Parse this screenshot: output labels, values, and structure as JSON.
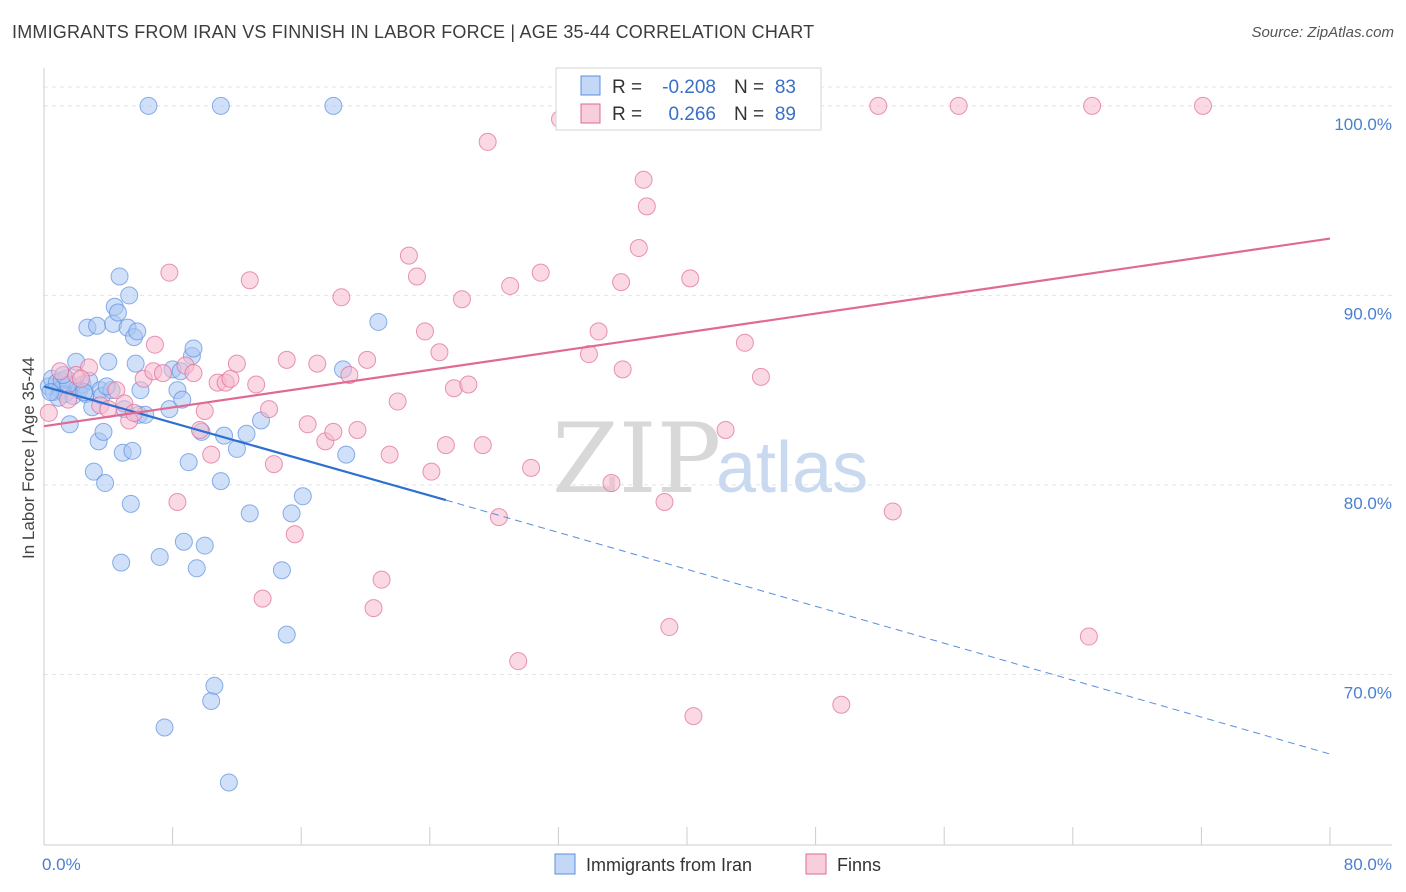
{
  "title": "IMMIGRANTS FROM IRAN VS FINNISH IN LABOR FORCE | AGE 35-44 CORRELATION CHART",
  "source": "Source: ZipAtlas.com",
  "watermark": {
    "zip": "ZIP",
    "atlas": "atlas"
  },
  "colors": {
    "blue": "#5b8fe0",
    "blue_fill": "#a9c6f3",
    "pink": "#e06a95",
    "pink_fill": "#f6b9cd",
    "tick": "#4a7fd0"
  },
  "legend": {
    "r_label": "R =",
    "n_label": "N =",
    "rows": [
      {
        "r": "-0.208",
        "n": "83"
      },
      {
        "r": "0.266",
        "n": "89"
      }
    ]
  },
  "chart_data": {
    "type": "scatter",
    "title": "IMMIGRANTS FROM IRAN VS FINNISH IN LABOR FORCE | AGE 35-44 CORRELATION CHART",
    "xlabel": "",
    "ylabel": "In Labor Force | Age 35-44",
    "xlim": [
      0,
      80
    ],
    "ylim": [
      61,
      102
    ],
    "x_tick_labels": [
      "0.0%",
      "80.0%"
    ],
    "y_ticks": [
      70,
      80,
      90,
      100
    ],
    "y_tick_labels": [
      "70.0%",
      "80.0%",
      "90.0%",
      "100.0%"
    ],
    "grid": true,
    "legend_position": "top-center",
    "series": [
      {
        "name": "Immigrants from Iran",
        "color": "#5b8fe0",
        "trend": {
          "x0": 0,
          "y0": 85.2,
          "x1": 25,
          "y1": 79.2,
          "dashed_to_x": 80,
          "dashed_to_y": 65.8
        },
        "points": [
          [
            0.3,
            85.2
          ],
          [
            0.5,
            85.6
          ],
          [
            0.6,
            84.9
          ],
          [
            0.8,
            85.4
          ],
          [
            1.0,
            85.0
          ],
          [
            1.1,
            85.5
          ],
          [
            1.3,
            84.8
          ],
          [
            1.4,
            85.6
          ],
          [
            1.6,
            83.2
          ],
          [
            1.8,
            84.7
          ],
          [
            2.0,
            86.5
          ],
          [
            2.1,
            85.1
          ],
          [
            2.2,
            85.0
          ],
          [
            2.4,
            85.3
          ],
          [
            2.6,
            84.8
          ],
          [
            2.7,
            88.3
          ],
          [
            2.8,
            85.5
          ],
          [
            3.0,
            84.1
          ],
          [
            3.1,
            80.7
          ],
          [
            3.3,
            88.4
          ],
          [
            3.4,
            82.3
          ],
          [
            3.5,
            85.0
          ],
          [
            3.6,
            84.7
          ],
          [
            3.7,
            82.8
          ],
          [
            3.8,
            80.1
          ],
          [
            4.0,
            86.5
          ],
          [
            4.2,
            85.0
          ],
          [
            4.3,
            88.5
          ],
          [
            4.4,
            89.4
          ],
          [
            4.6,
            89.1
          ],
          [
            4.7,
            91.0
          ],
          [
            4.8,
            75.9
          ],
          [
            4.9,
            81.7
          ],
          [
            5.0,
            84.0
          ],
          [
            5.2,
            88.3
          ],
          [
            5.3,
            90.0
          ],
          [
            5.4,
            79.0
          ],
          [
            5.5,
            81.8
          ],
          [
            5.6,
            87.8
          ],
          [
            5.7,
            86.4
          ],
          [
            5.8,
            88.1
          ],
          [
            5.9,
            83.7
          ],
          [
            6.0,
            85.0
          ],
          [
            6.5,
            100.0
          ],
          [
            6.3,
            83.7
          ],
          [
            7.2,
            76.2
          ],
          [
            7.5,
            67.2
          ],
          [
            7.8,
            84.0
          ],
          [
            8.0,
            86.1
          ],
          [
            8.3,
            85.0
          ],
          [
            8.5,
            86.0
          ],
          [
            8.6,
            84.5
          ],
          [
            8.7,
            77.0
          ],
          [
            9.0,
            81.2
          ],
          [
            9.2,
            86.8
          ],
          [
            9.3,
            87.2
          ],
          [
            9.5,
            75.6
          ],
          [
            9.8,
            82.8
          ],
          [
            10.0,
            76.8
          ],
          [
            10.4,
            68.6
          ],
          [
            10.6,
            69.4
          ],
          [
            11.0,
            80.2
          ],
          [
            11.2,
            82.6
          ],
          [
            11.5,
            64.3
          ],
          [
            11.0,
            100.0
          ],
          [
            12.0,
            81.9
          ],
          [
            12.6,
            82.7
          ],
          [
            12.8,
            78.5
          ],
          [
            13.5,
            83.4
          ],
          [
            14.8,
            75.5
          ],
          [
            15.1,
            72.1
          ],
          [
            15.4,
            78.5
          ],
          [
            16.1,
            79.4
          ],
          [
            18.0,
            100.0
          ],
          [
            18.6,
            86.1
          ],
          [
            18.8,
            81.6
          ],
          [
            20.8,
            88.6
          ],
          [
            1.5,
            85.3
          ],
          [
            2.5,
            84.9
          ],
          [
            0.9,
            84.6
          ],
          [
            1.2,
            85.8
          ],
          [
            0.4,
            84.9
          ],
          [
            3.9,
            85.2
          ]
        ]
      },
      {
        "name": "Finns",
        "color": "#e06a95",
        "trend": {
          "x0": 0,
          "y0": 83.1,
          "x1": 80,
          "y1": 93.0
        },
        "points": [
          [
            0.3,
            83.8
          ],
          [
            1.5,
            84.5
          ],
          [
            2.0,
            85.8
          ],
          [
            2.8,
            86.2
          ],
          [
            3.5,
            84.2
          ],
          [
            4.0,
            84.0
          ],
          [
            4.5,
            85.0
          ],
          [
            5.0,
            84.3
          ],
          [
            5.3,
            83.4
          ],
          [
            5.6,
            83.8
          ],
          [
            6.2,
            85.6
          ],
          [
            6.8,
            86.0
          ],
          [
            6.9,
            87.4
          ],
          [
            7.4,
            85.9
          ],
          [
            7.8,
            91.2
          ],
          [
            8.3,
            79.1
          ],
          [
            8.8,
            86.3
          ],
          [
            9.3,
            85.9
          ],
          [
            9.7,
            82.9
          ],
          [
            10.0,
            83.9
          ],
          [
            10.4,
            81.6
          ],
          [
            10.8,
            85.4
          ],
          [
            11.3,
            85.4
          ],
          [
            11.6,
            85.6
          ],
          [
            12.0,
            86.4
          ],
          [
            12.8,
            90.8
          ],
          [
            13.2,
            85.3
          ],
          [
            13.6,
            74.0
          ],
          [
            14.0,
            84.0
          ],
          [
            14.3,
            81.1
          ],
          [
            15.1,
            86.6
          ],
          [
            15.6,
            77.4
          ],
          [
            16.4,
            83.2
          ],
          [
            17.0,
            86.4
          ],
          [
            17.5,
            82.3
          ],
          [
            18.0,
            82.8
          ],
          [
            18.5,
            89.9
          ],
          [
            19.0,
            85.8
          ],
          [
            19.5,
            82.9
          ],
          [
            20.1,
            86.6
          ],
          [
            20.5,
            73.5
          ],
          [
            21.0,
            75.0
          ],
          [
            21.5,
            81.6
          ],
          [
            22.0,
            84.4
          ],
          [
            22.7,
            92.1
          ],
          [
            23.2,
            91.0
          ],
          [
            23.7,
            88.1
          ],
          [
            24.1,
            80.7
          ],
          [
            24.6,
            87.0
          ],
          [
            25.0,
            82.1
          ],
          [
            25.5,
            85.1
          ],
          [
            26.0,
            89.8
          ],
          [
            26.4,
            85.3
          ],
          [
            27.3,
            82.1
          ],
          [
            27.6,
            98.1
          ],
          [
            28.3,
            78.3
          ],
          [
            29.0,
            90.5
          ],
          [
            29.5,
            70.7
          ],
          [
            30.3,
            80.9
          ],
          [
            30.9,
            91.2
          ],
          [
            32.1,
            99.3
          ],
          [
            32.4,
            100.0
          ],
          [
            33.0,
            99.9
          ],
          [
            33.9,
            86.9
          ],
          [
            34.5,
            88.1
          ],
          [
            35.3,
            80.1
          ],
          [
            35.9,
            90.7
          ],
          [
            36.0,
            86.1
          ],
          [
            37.3,
            96.1
          ],
          [
            37.5,
            94.7
          ],
          [
            37.0,
            92.5
          ],
          [
            38.6,
            79.1
          ],
          [
            38.9,
            72.5
          ],
          [
            40.2,
            90.9
          ],
          [
            40.4,
            67.8
          ],
          [
            42.4,
            82.9
          ],
          [
            43.6,
            87.5
          ],
          [
            44.6,
            85.7
          ],
          [
            45.0,
            100.0
          ],
          [
            45.3,
            100.0
          ],
          [
            49.6,
            68.4
          ],
          [
            51.9,
            100.0
          ],
          [
            52.8,
            78.6
          ],
          [
            56.9,
            100.0
          ],
          [
            65.2,
            100.0
          ],
          [
            65.0,
            72.0
          ],
          [
            72.1,
            100.0
          ],
          [
            1.0,
            86.0
          ],
          [
            2.3,
            85.6
          ]
        ]
      }
    ]
  },
  "bottom_legend": {
    "series1": "Immigrants from Iran",
    "series2": "Finns"
  }
}
